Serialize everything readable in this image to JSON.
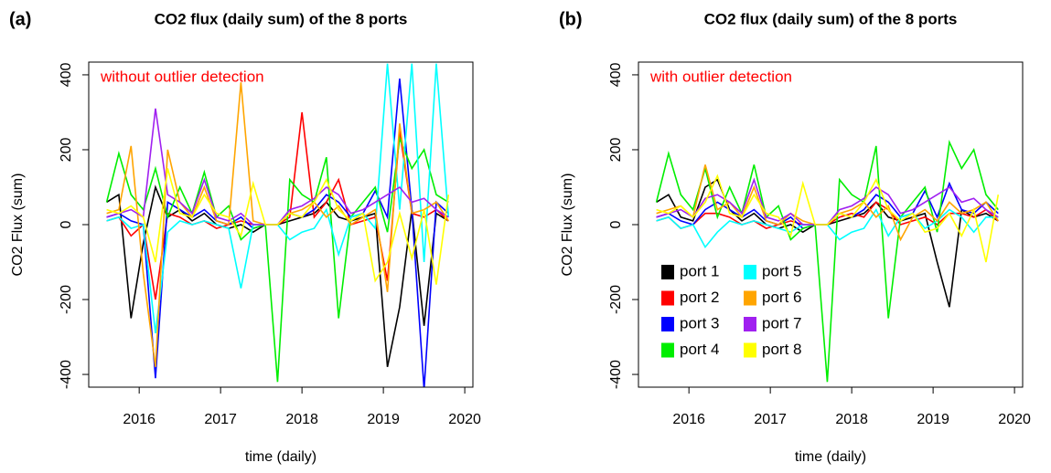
{
  "chart_data": [
    {
      "type": "line",
      "panel_label": "(a)",
      "title": "CO2 flux (daily sum) of the 8 ports",
      "annotation": "without outlier detection",
      "annotation_color": "#ff0000",
      "x_label": "time (daily)",
      "y_label": "CO2 Flux (sum)",
      "legend": false,
      "x": [
        2015.6,
        2015.75,
        2015.9,
        2016.05,
        2016.2,
        2016.35,
        2016.5,
        2016.65,
        2016.8,
        2016.95,
        2017.1,
        2017.25,
        2017.4,
        2017.55,
        2017.7,
        2017.85,
        2018.0,
        2018.15,
        2018.3,
        2018.45,
        2018.6,
        2018.75,
        2018.9,
        2019.05,
        2019.2,
        2019.35,
        2019.5,
        2019.65,
        2019.8
      ],
      "xlim": [
        2015.38,
        2020.1
      ],
      "xticks": [
        2016,
        2017,
        2018,
        2019,
        2020
      ],
      "ylim": [
        -434,
        434
      ],
      "yticks": [
        -400,
        -200,
        0,
        200,
        400
      ],
      "series": [
        {
          "name": "port 1",
          "color": "#000000",
          "values": [
            60,
            80,
            -250,
            -50,
            100,
            20,
            40,
            10,
            30,
            0,
            -10,
            0,
            -20,
            0,
            0,
            10,
            20,
            30,
            60,
            20,
            10,
            20,
            30,
            -380,
            -220,
            40,
            -270,
            30,
            10
          ]
        },
        {
          "name": "port 2",
          "color": "#ff0000",
          "values": [
            10,
            20,
            -30,
            0,
            -200,
            30,
            20,
            0,
            10,
            -10,
            0,
            10,
            0,
            0,
            0,
            20,
            300,
            20,
            60,
            120,
            0,
            10,
            20,
            -150,
            250,
            30,
            20,
            40,
            10
          ]
        },
        {
          "name": "port 3",
          "color": "#0000ff",
          "values": [
            20,
            30,
            10,
            0,
            -410,
            60,
            40,
            20,
            40,
            10,
            0,
            20,
            -10,
            0,
            0,
            30,
            20,
            40,
            80,
            60,
            20,
            30,
            90,
            20,
            390,
            40,
            -440,
            60,
            30
          ]
        },
        {
          "name": "port 4",
          "color": "#00ee00",
          "values": [
            60,
            190,
            80,
            40,
            150,
            20,
            100,
            30,
            140,
            20,
            50,
            -40,
            -10,
            0,
            -420,
            120,
            80,
            60,
            180,
            -250,
            20,
            60,
            100,
            -20,
            230,
            150,
            200,
            80,
            60
          ]
        },
        {
          "name": "port 5",
          "color": "#00ffff",
          "values": [
            10,
            20,
            -10,
            0,
            -290,
            -20,
            10,
            0,
            10,
            0,
            -10,
            -170,
            0,
            0,
            0,
            -40,
            -20,
            -10,
            40,
            -80,
            20,
            30,
            -10,
            430,
            40,
            430,
            -100,
            430,
            20
          ]
        },
        {
          "name": "port 6",
          "color": "#ffa500",
          "values": [
            30,
            40,
            210,
            -130,
            -380,
            200,
            60,
            20,
            100,
            10,
            0,
            380,
            10,
            0,
            0,
            30,
            40,
            60,
            20,
            50,
            0,
            20,
            40,
            -180,
            270,
            30,
            40,
            60,
            10
          ]
        },
        {
          "name": "port 7",
          "color": "#a020f0",
          "values": [
            20,
            30,
            40,
            20,
            310,
            80,
            60,
            30,
            120,
            20,
            10,
            30,
            0,
            0,
            0,
            40,
            50,
            70,
            100,
            80,
            30,
            40,
            60,
            80,
            100,
            60,
            70,
            40,
            20
          ]
        },
        {
          "name": "port 8",
          "color": "#ffff00",
          "values": [
            40,
            30,
            50,
            20,
            -100,
            150,
            30,
            20,
            80,
            30,
            20,
            -30,
            110,
            0,
            0,
            30,
            20,
            60,
            120,
            40,
            10,
            30,
            -150,
            -100,
            30,
            -90,
            40,
            -160,
            80
          ]
        }
      ]
    },
    {
      "type": "line",
      "panel_label": "(b)",
      "title": "CO2 flux (daily sum) of the 8 ports",
      "annotation": "with outlier detection",
      "annotation_color": "#ff0000",
      "x_label": "time (daily)",
      "y_label": "CO2 Flux (sum)",
      "legend": "left",
      "x": [
        2015.6,
        2015.75,
        2015.9,
        2016.05,
        2016.2,
        2016.35,
        2016.5,
        2016.65,
        2016.8,
        2016.95,
        2017.1,
        2017.25,
        2017.4,
        2017.55,
        2017.7,
        2017.85,
        2018.0,
        2018.15,
        2018.3,
        2018.45,
        2018.6,
        2018.75,
        2018.9,
        2019.05,
        2019.2,
        2019.35,
        2019.5,
        2019.65,
        2019.8
      ],
      "xlim": [
        2015.38,
        2020.1
      ],
      "xticks": [
        2016,
        2017,
        2018,
        2019,
        2020
      ],
      "ylim": [
        -434,
        434
      ],
      "yticks": [
        -400,
        -200,
        0,
        200,
        400
      ],
      "series": [
        {
          "name": "port 1",
          "color": "#000000",
          "values": [
            60,
            80,
            20,
            10,
            100,
            120,
            40,
            10,
            30,
            0,
            -10,
            0,
            -20,
            0,
            0,
            10,
            20,
            30,
            60,
            20,
            10,
            20,
            30,
            -100,
            -220,
            40,
            20,
            30,
            10
          ]
        },
        {
          "name": "port 2",
          "color": "#ff0000",
          "values": [
            10,
            20,
            -10,
            0,
            30,
            30,
            20,
            0,
            10,
            -10,
            0,
            10,
            0,
            0,
            0,
            20,
            30,
            20,
            60,
            40,
            0,
            10,
            20,
            0,
            30,
            30,
            20,
            40,
            10
          ]
        },
        {
          "name": "port 3",
          "color": "#0000ff",
          "values": [
            20,
            30,
            10,
            0,
            40,
            60,
            40,
            20,
            40,
            10,
            0,
            20,
            -10,
            0,
            0,
            30,
            20,
            40,
            80,
            60,
            20,
            30,
            90,
            20,
            110,
            40,
            30,
            60,
            30
          ]
        },
        {
          "name": "port 4",
          "color": "#00ee00",
          "values": [
            60,
            190,
            80,
            40,
            150,
            20,
            100,
            30,
            160,
            20,
            50,
            -40,
            -10,
            0,
            -420,
            120,
            80,
            60,
            210,
            -250,
            20,
            60,
            100,
            -20,
            220,
            150,
            200,
            80,
            40
          ]
        },
        {
          "name": "port 5",
          "color": "#00ffff",
          "values": [
            10,
            20,
            -10,
            0,
            -60,
            -20,
            10,
            0,
            10,
            0,
            -10,
            -20,
            0,
            0,
            0,
            -40,
            -20,
            -10,
            40,
            -30,
            20,
            30,
            -10,
            10,
            40,
            20,
            -20,
            20,
            20
          ]
        },
        {
          "name": "port 6",
          "color": "#ffa500",
          "values": [
            30,
            40,
            50,
            20,
            160,
            40,
            60,
            20,
            100,
            10,
            0,
            30,
            10,
            0,
            0,
            30,
            40,
            60,
            20,
            50,
            -40,
            20,
            40,
            10,
            60,
            30,
            40,
            60,
            10
          ]
        },
        {
          "name": "port 7",
          "color": "#a020f0",
          "values": [
            20,
            30,
            40,
            20,
            70,
            80,
            60,
            30,
            120,
            20,
            10,
            30,
            0,
            0,
            0,
            40,
            50,
            70,
            100,
            80,
            30,
            40,
            60,
            80,
            100,
            60,
            70,
            40,
            20
          ]
        },
        {
          "name": "port 8",
          "color": "#ffff00",
          "values": [
            40,
            30,
            50,
            20,
            60,
            130,
            30,
            20,
            80,
            30,
            20,
            -30,
            110,
            0,
            0,
            30,
            20,
            60,
            120,
            40,
            10,
            30,
            -20,
            -10,
            30,
            -30,
            40,
            -100,
            80
          ]
        }
      ]
    }
  ]
}
